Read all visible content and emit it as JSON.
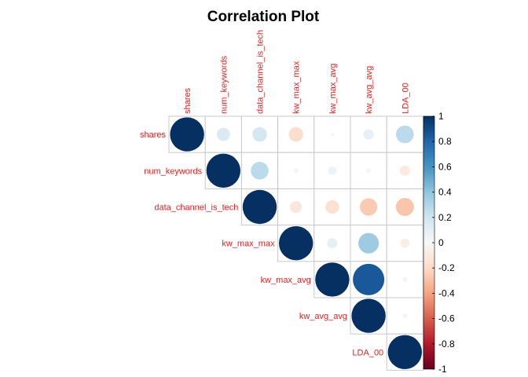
{
  "chart_data": {
    "type": "heatmap",
    "title": "Correlation Plot",
    "variables": [
      "shares",
      "num_keywords",
      "data_channel_is_tech",
      "kw_max_max",
      "kw_max_avg",
      "kw_avg_avg",
      "LDA_00"
    ],
    "matrix": [
      [
        1.0,
        0.15,
        0.18,
        -0.18,
        0.01,
        0.09,
        0.27
      ],
      [
        0.15,
        1.0,
        0.27,
        0.02,
        0.06,
        0.02,
        -0.09
      ],
      [
        0.18,
        0.27,
        1.0,
        -0.12,
        -0.16,
        -0.26,
        -0.28
      ],
      [
        -0.18,
        0.02,
        -0.12,
        1.0,
        0.09,
        0.36,
        -0.07
      ],
      [
        0.01,
        0.06,
        -0.16,
        0.09,
        1.0,
        0.85,
        0.02
      ],
      [
        0.09,
        0.02,
        -0.26,
        0.36,
        0.85,
        1.0,
        0.02
      ],
      [
        0.27,
        -0.09,
        -0.28,
        -0.07,
        0.02,
        0.02,
        1.0
      ]
    ],
    "layout": "upper",
    "shape": "circle",
    "colorbar": {
      "range": [
        -1,
        1
      ],
      "ticks": [
        "1",
        "0.8",
        "0.6",
        "0.4",
        "0.2",
        "0",
        "-0.2",
        "-0.4",
        "-0.6",
        "-0.8",
        "-1"
      ]
    },
    "colors": {
      "low": "#67001f",
      "mid": "#f7f7f7",
      "high": "#053061",
      "label": "#ee1c1c"
    }
  }
}
